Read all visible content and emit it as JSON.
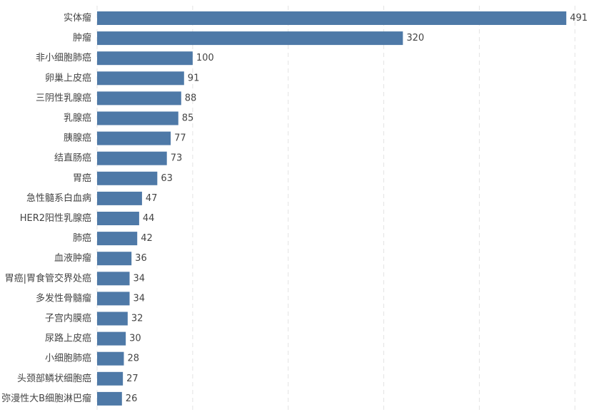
{
  "chart_data": {
    "type": "bar",
    "orientation": "horizontal",
    "categories": [
      "实体瘤",
      "肿瘤",
      "非小细胞肺癌",
      "卵巢上皮癌",
      "三阴性乳腺癌",
      "乳腺癌",
      "胰腺癌",
      "结直肠癌",
      "胃癌",
      "急性髓系白血病",
      "HER2阳性乳腺癌",
      "肺癌",
      "血液肿瘤",
      "胃癌|胃食管交界处癌",
      "多发性骨髓瘤",
      "子宫内膜癌",
      "尿路上皮癌",
      "小细胞肺癌",
      "头颈部鳞状细胞癌",
      "弥漫性大B细胞淋巴瘤"
    ],
    "values": [
      491,
      320,
      100,
      91,
      88,
      85,
      77,
      73,
      63,
      47,
      44,
      42,
      36,
      34,
      34,
      32,
      30,
      28,
      27,
      26
    ],
    "value_labels": [
      "491",
      "320",
      "100",
      "91",
      "88",
      "85",
      "77",
      "73",
      "63",
      "47",
      "44",
      "42",
      "36",
      "34",
      "34",
      "32",
      "30",
      "28",
      "27",
      "26"
    ],
    "xlim": [
      0,
      500
    ],
    "grid": true,
    "bar_color": "#4e79a7",
    "title": "",
    "xlabel": "",
    "ylabel": ""
  }
}
